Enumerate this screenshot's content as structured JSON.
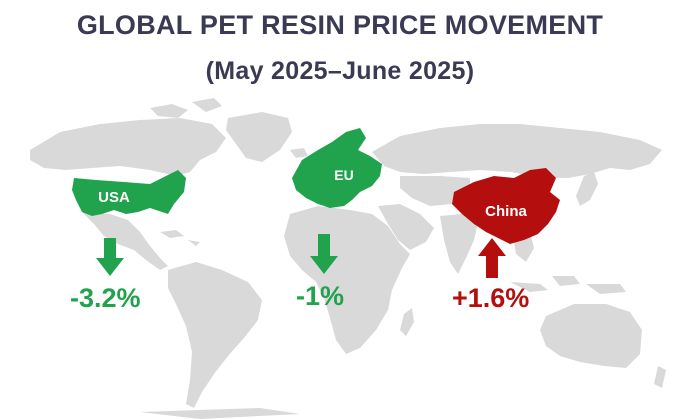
{
  "title": {
    "line1": "GLOBAL PET RESIN PRICE MOVEMENT",
    "line2": "(May 2025–June 2025)"
  },
  "colors": {
    "map": "#d9d9d9",
    "decrease": "#21a34e",
    "increase": "#b50e0e",
    "title": "#3a3a55"
  },
  "regions": [
    {
      "label": "USA",
      "change": "-3.2%",
      "direction": "down",
      "color": "#21a34e"
    },
    {
      "label": "EU",
      "change": "-1%",
      "direction": "down",
      "color": "#21a34e"
    },
    {
      "label": "China",
      "change": "+1.6%",
      "direction": "up",
      "color": "#b50e0e"
    }
  ]
}
